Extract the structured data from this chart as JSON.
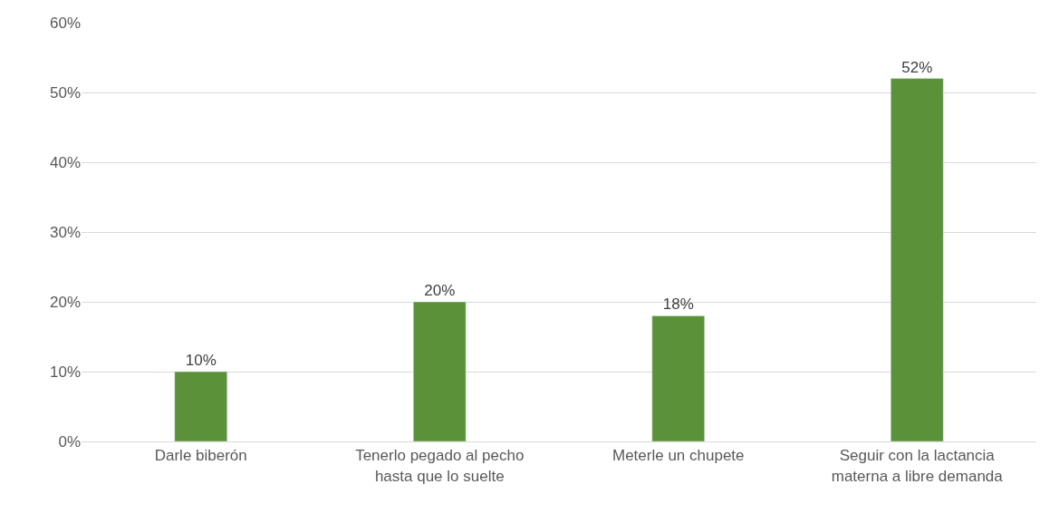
{
  "chart_data": {
    "type": "bar",
    "categories": [
      "Darle biberón",
      "Tenerlo pegado al pecho hasta que lo suelte",
      "Meterle un chupete",
      "Seguir con la lactancia materna a libre demanda"
    ],
    "values": [
      10,
      20,
      18,
      52
    ],
    "value_labels": [
      "10%",
      "20%",
      "18%",
      "52%"
    ],
    "color": "#5b9139",
    "ylim": [
      0,
      60
    ],
    "yticks": [
      {
        "value": 0,
        "label": "0%"
      },
      {
        "value": 10,
        "label": "10%"
      },
      {
        "value": 20,
        "label": "20%"
      },
      {
        "value": 30,
        "label": "30%"
      },
      {
        "value": 40,
        "label": "40%"
      },
      {
        "value": 50,
        "label": "50%"
      },
      {
        "value": 60,
        "label": "60%"
      }
    ],
    "grid": "y"
  }
}
